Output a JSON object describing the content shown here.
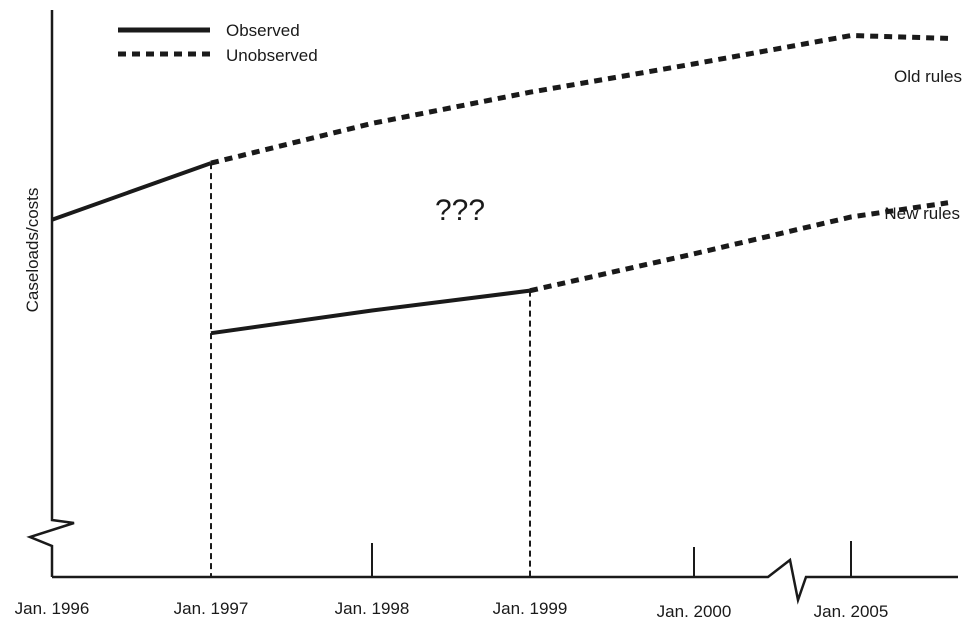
{
  "chart_data": {
    "type": "line",
    "xlabel": "",
    "ylabel": "Caseloads/costs",
    "x_ticks": [
      "Jan. 1996",
      "Jan. 1997",
      "Jan. 1998",
      "Jan. 1999",
      "Jan. 2000",
      "Jan. 2005"
    ],
    "axis_break_x_between": [
      "Jan. 2000",
      "Jan. 2005"
    ],
    "y_axis_break": true,
    "y_ticks": false,
    "grid": false,
    "legend": {
      "placement": "top-left",
      "entries": [
        {
          "label": "Observed",
          "style": "solid"
        },
        {
          "label": "Unobserved",
          "style": "dotted"
        }
      ]
    },
    "annotations": [
      "???"
    ],
    "vertical_markers": [
      {
        "x": "Jan. 1997",
        "style": "dashed"
      },
      {
        "x": "Jan. 1999",
        "style": "dashed"
      }
    ],
    "series": [
      {
        "name": "Old rules",
        "segments": [
          {
            "style": "solid",
            "points": [
              [
                "Jan. 1996",
                0.63
              ],
              [
                "Jan. 1997",
                0.73
              ]
            ]
          },
          {
            "style": "dotted",
            "points": [
              [
                "Jan. 1997",
                0.73
              ],
              [
                "Jan. 1998",
                0.8
              ],
              [
                "Jan. 1999",
                0.855
              ],
              [
                "Jan. 2000",
                0.905
              ],
              [
                "Jan. 2005",
                0.955
              ],
              [
                "end",
                0.95
              ]
            ]
          }
        ]
      },
      {
        "name": "New rules",
        "segments": [
          {
            "style": "solid",
            "points": [
              [
                "Jan. 1997",
                0.43
              ],
              [
                "Jan. 1998",
                0.47
              ],
              [
                "Jan. 1999",
                0.505
              ]
            ]
          },
          {
            "style": "dotted",
            "points": [
              [
                "Jan. 1999",
                0.505
              ],
              [
                "Jan. 2000",
                0.57
              ],
              [
                "Jan. 2005",
                0.635
              ],
              [
                "end",
                0.66
              ]
            ]
          }
        ]
      }
    ]
  }
}
